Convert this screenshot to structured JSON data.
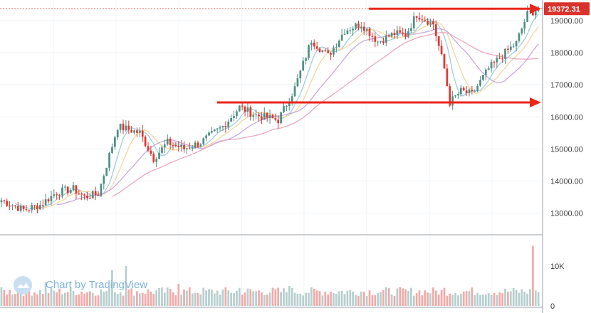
{
  "colors": {
    "up": "#4f8f86",
    "down": "#e0362e",
    "vol_up": "#b7cfcf",
    "vol_down": "#f2aaa8",
    "grid": "#f0f3fa",
    "arrow": "#e8261c",
    "price_tag": "#d9332b",
    "ma_fast": "#9fd0dc",
    "ma_mid": "#f4d7a0",
    "ma_slow": "#c9a9de",
    "ma_long": "#eaa7c0"
  },
  "watermark": {
    "text": "Chart by TradingView",
    "icon": "tradingview-cloud-icon"
  },
  "chart_data": {
    "type": "candlestick",
    "price_axis": {
      "ticks": [
        "19000.00",
        "18000.00",
        "17000.00",
        "16000.00",
        "15000.00",
        "14000.00",
        "13000.00"
      ],
      "tick_values": [
        19000,
        18000,
        17000,
        16000,
        15000,
        14000,
        13000
      ],
      "range": [
        12500,
        19600
      ]
    },
    "volume_axis": {
      "ticks": [
        "10K",
        "0"
      ],
      "tick_values": [
        10000,
        0
      ],
      "range": [
        0,
        16000
      ]
    },
    "last_price": {
      "label": "19372.31",
      "value": 19372.31
    },
    "arrows": [
      {
        "name": "top-resistance-arrow",
        "from": [
          0.68,
          19372
        ],
        "to": [
          1.0,
          19372
        ]
      },
      {
        "name": "support-arrow",
        "from": [
          0.4,
          16450
        ],
        "to": [
          1.0,
          16450
        ]
      }
    ],
    "candle_count": 195,
    "anchors": [
      [
        0,
        13400
      ],
      [
        8,
        13100
      ],
      [
        14,
        13250
      ],
      [
        20,
        13650
      ],
      [
        26,
        13750
      ],
      [
        30,
        13500
      ],
      [
        35,
        13600
      ],
      [
        42,
        15700
      ],
      [
        50,
        15500
      ],
      [
        55,
        14700
      ],
      [
        60,
        15200
      ],
      [
        66,
        15000
      ],
      [
        72,
        15200
      ],
      [
        80,
        15700
      ],
      [
        86,
        16300
      ],
      [
        92,
        16050
      ],
      [
        100,
        15900
      ],
      [
        106,
        16900
      ],
      [
        112,
        18400
      ],
      [
        118,
        17900
      ],
      [
        124,
        18700
      ],
      [
        130,
        18900
      ],
      [
        136,
        18350
      ],
      [
        142,
        18600
      ],
      [
        146,
        18550
      ],
      [
        150,
        19200
      ],
      [
        156,
        18900
      ],
      [
        160,
        17500
      ],
      [
        162,
        16450
      ],
      [
        166,
        16800
      ],
      [
        170,
        16700
      ],
      [
        176,
        17500
      ],
      [
        182,
        18000
      ],
      [
        186,
        18300
      ],
      [
        190,
        19200
      ],
      [
        194,
        19372
      ]
    ],
    "volume_base": 2500,
    "volume_spikes": [
      [
        16,
        6000
      ],
      [
        40,
        9000
      ],
      [
        45,
        10000
      ],
      [
        64,
        5500
      ],
      [
        86,
        4500
      ],
      [
        104,
        5000
      ],
      [
        160,
        4500
      ],
      [
        192,
        15000
      ]
    ]
  }
}
